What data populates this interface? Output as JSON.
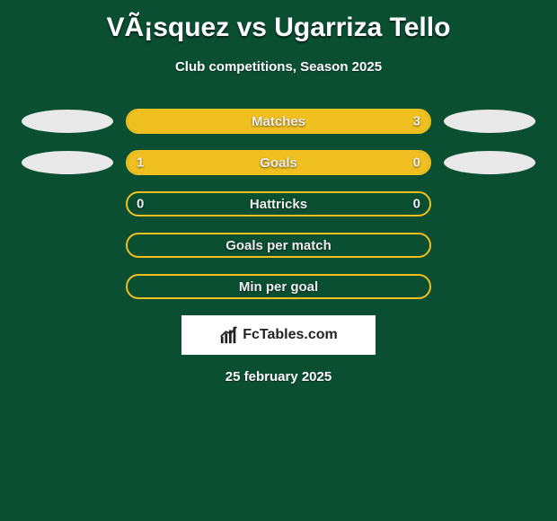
{
  "title": "VÃ¡squez vs Ugarriza Tello",
  "subtitle": "Club competitions, Season 2025",
  "colors": {
    "bg": "#0b4f33",
    "accent": "#f0c020",
    "ellipse": "#e9e9e9",
    "text": "#ffffff"
  },
  "rows": [
    {
      "label": "Matches",
      "left_value": "",
      "right_value": "3",
      "left_fill_pct": 50,
      "right_fill_pct": 50,
      "show_left_ellipse": true,
      "show_right_ellipse": true
    },
    {
      "label": "Goals",
      "left_value": "1",
      "right_value": "0",
      "left_fill_pct": 78,
      "right_fill_pct": 22,
      "show_left_ellipse": true,
      "show_right_ellipse": true
    },
    {
      "label": "Hattricks",
      "left_value": "0",
      "right_value": "0",
      "left_fill_pct": 0,
      "right_fill_pct": 0,
      "show_left_ellipse": false,
      "show_right_ellipse": false
    },
    {
      "label": "Goals per match",
      "left_value": "",
      "right_value": "",
      "left_fill_pct": 0,
      "right_fill_pct": 0,
      "show_left_ellipse": false,
      "show_right_ellipse": false
    },
    {
      "label": "Min per goal",
      "left_value": "",
      "right_value": "",
      "left_fill_pct": 0,
      "right_fill_pct": 0,
      "show_left_ellipse": false,
      "show_right_ellipse": false
    }
  ],
  "footer": {
    "brand": "FcTables.com",
    "date": "25 february 2025"
  }
}
